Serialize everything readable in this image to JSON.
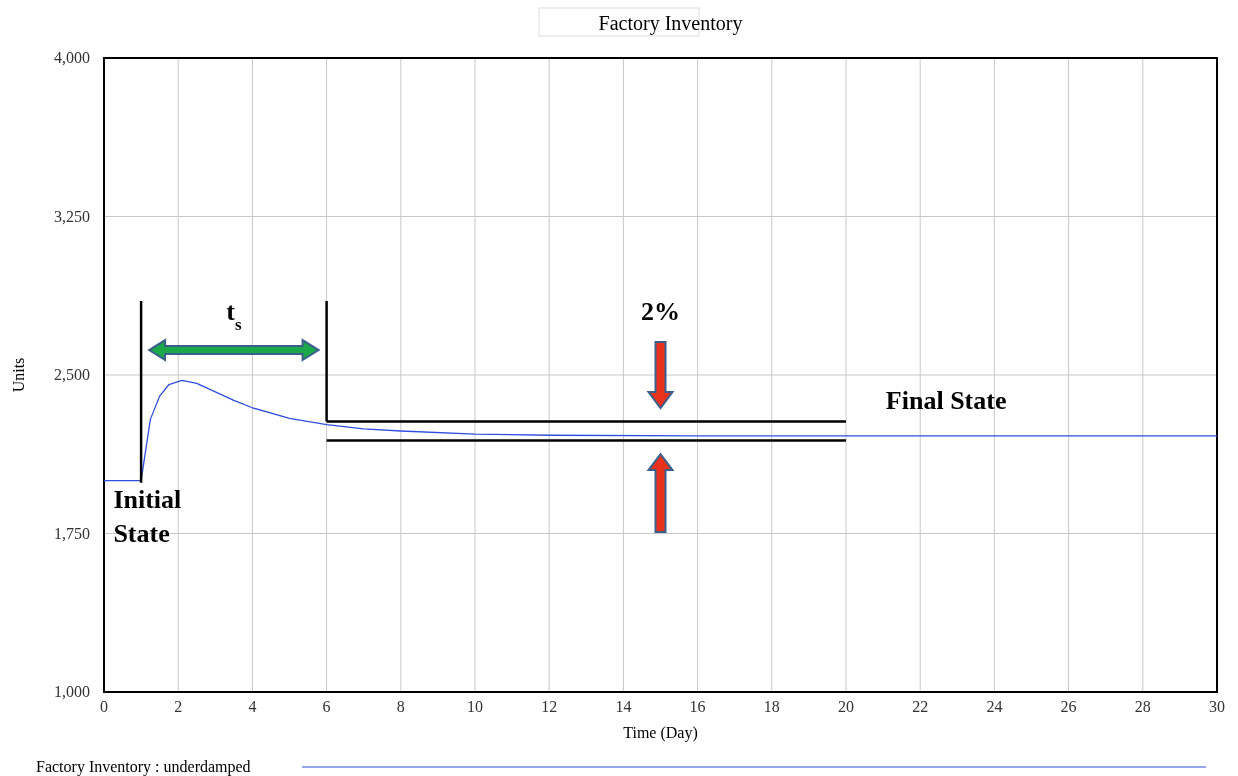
{
  "chart_data": {
    "type": "line",
    "title": "Factory Inventory",
    "xlabel": "Time (Day)",
    "ylabel": "Units",
    "xlim": [
      0,
      30
    ],
    "xticks": [
      0,
      2,
      4,
      6,
      8,
      10,
      12,
      14,
      16,
      18,
      20,
      22,
      24,
      26,
      28,
      30
    ],
    "ylim": [
      1000,
      4000
    ],
    "yticks": [
      {
        "value": 1000,
        "label": "1,000"
      },
      {
        "value": 1750,
        "label": "1,750"
      },
      {
        "value": 2500,
        "label": "2,500"
      },
      {
        "value": 3250,
        "label": "3,250"
      },
      {
        "value": 4000,
        "label": "4,000"
      }
    ],
    "grid": true,
    "legend": "bottom",
    "marker": "none",
    "line_style": "solid",
    "series": [
      {
        "name": "Factory Inventory : underdamped",
        "color": "#2f4fe0",
        "x": [
          0,
          1,
          1.25,
          1.5,
          1.75,
          2.1,
          2.5,
          3,
          3.5,
          4,
          5,
          6,
          7,
          8,
          10,
          12,
          16,
          20,
          30
        ],
        "values": [
          2000,
          2000,
          2290,
          2400,
          2455,
          2475,
          2460,
          2420,
          2380,
          2345,
          2295,
          2265,
          2245,
          2235,
          2220,
          2215,
          2212,
          2212,
          2212
        ]
      },
      {
        "type": "line",
        "color": "#000000",
        "x": [
          6,
          20
        ],
        "values": [
          2280,
          2280
        ]
      },
      {
        "type": "line",
        "color": "#000000",
        "x": [
          6,
          20
        ],
        "values": [
          2190,
          2190
        ]
      },
      {
        "type": "line",
        "color": "#000000",
        "x": [
          1,
          1
        ],
        "values": [
          1990,
          2850
        ]
      },
      {
        "type": "line",
        "color": "#000000",
        "x": [
          6,
          6
        ],
        "values": [
          2280,
          2850
        ]
      }
    ],
    "annotations": [
      "t$_{s}$",
      "2%",
      "Final State",
      "Initial State"
    ]
  }
}
